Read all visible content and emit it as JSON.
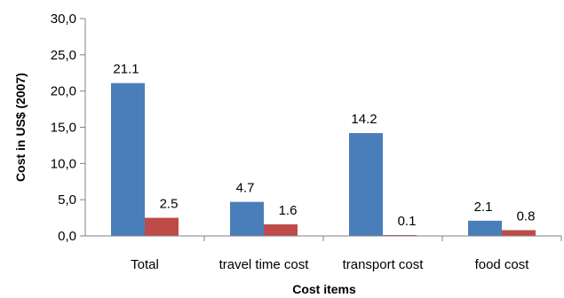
{
  "chart_data": {
    "type": "bar",
    "title": "",
    "xlabel": "Cost items",
    "ylabel": "Cost in US$ (2007)",
    "ylim": [
      0,
      30
    ],
    "yticks": [
      "0,0",
      "5,0",
      "10,0",
      "15,0",
      "20,0",
      "25,0",
      "30,0"
    ],
    "grid": false,
    "legend": "none",
    "categories": [
      "Total",
      "travel time cost",
      "transport cost",
      "food cost"
    ],
    "series": [
      {
        "values": [
          21.1,
          4.7,
          14.2,
          2.1
        ],
        "labels": [
          "21.1",
          "4.7",
          "14.2",
          "2.1"
        ],
        "color": "#4a7ebb"
      },
      {
        "values": [
          2.5,
          1.6,
          0.1,
          0.8
        ],
        "labels": [
          "2.5",
          "1.6",
          "0.1",
          "0.8"
        ],
        "color": "#be4b48"
      }
    ]
  }
}
